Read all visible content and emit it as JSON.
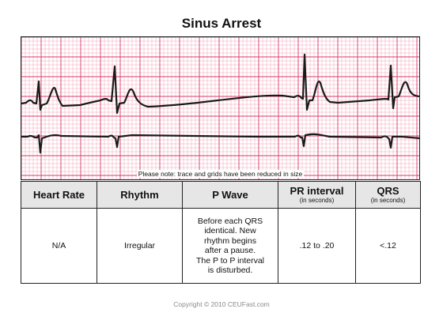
{
  "title": "Sinus Arrest",
  "ecg": {
    "note": "Please note: trace and grids have been reduced in size",
    "grid_color_minor": "#f2a0b8",
    "grid_color_major": "#d83a6a",
    "trace_color": "#1a1a1a"
  },
  "table": {
    "headers": {
      "heart_rate": "Heart Rate",
      "rhythm": "Rhythm",
      "p_wave": "P Wave",
      "pr_interval": "PR interval",
      "pr_interval_unit": "(in seconds)",
      "qrs": "QRS",
      "qrs_unit": "(in seconds)"
    },
    "row": {
      "heart_rate": "N/A",
      "rhythm": "Irregular",
      "p_wave": "Before each QRS\nidentical. New\nrhythm begins\nafter a pause.\nThe P to P interval\nis disturbed.",
      "pr_interval": ".12 to .20",
      "qrs": "<.12"
    },
    "header_bg": "#e6e6e6"
  },
  "copyright": "Copyright © 2010 CEUFast.com"
}
